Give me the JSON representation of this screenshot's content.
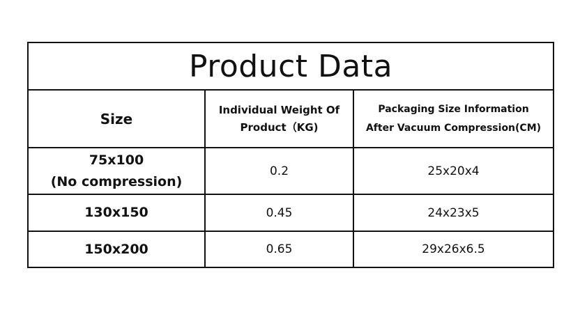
{
  "title": "Product Data",
  "headers": {
    "size": "Size",
    "weight_line1": "Individual Weight Of",
    "weight_line2": "Product（KG)",
    "packaging_line1": "Packaging Size Information",
    "packaging_line2": "After Vacuum Compression(CM)"
  },
  "rows": [
    {
      "size_line1": "75x100",
      "size_line2": "(No compression)",
      "weight": "0.2",
      "packaging": "25x20x4"
    },
    {
      "size_line1": "130x150",
      "weight": "0.45",
      "packaging": "24x23x5"
    },
    {
      "size_line1": "150x200",
      "weight": "0.65",
      "packaging": "29x26x6.5"
    }
  ]
}
